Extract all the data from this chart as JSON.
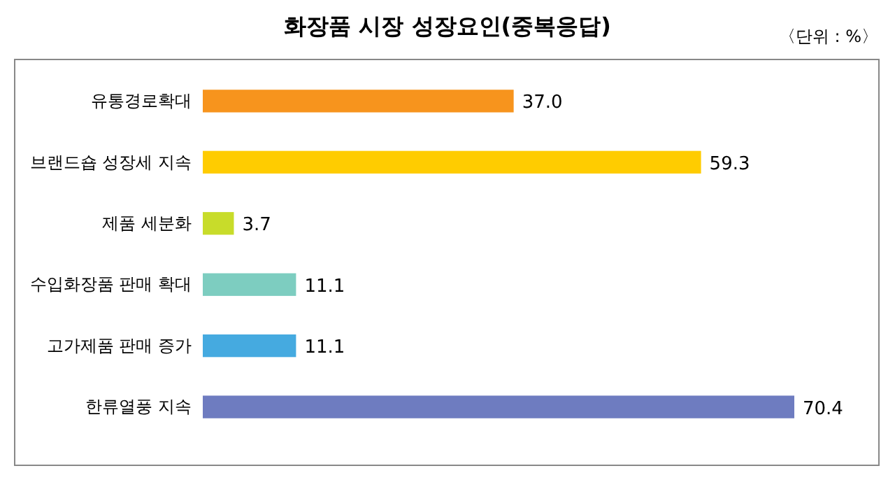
{
  "chart_data": {
    "type": "bar",
    "orientation": "horizontal",
    "title": "화장품 시장 성장요인(중복응답)",
    "annotations": [
      "〈단위 : %〉"
    ],
    "categories": [
      "유통경로확대",
      "브랜드숍 성장세 지속",
      "제품 세분화",
      "수입화장품 판매 확대",
      "고가제품 판매 증가",
      "한류열풍 지속"
    ],
    "values": [
      37.0,
      59.3,
      3.7,
      11.1,
      11.1,
      70.4
    ],
    "value_labels": [
      "37.0",
      "59.3",
      "3.7",
      "11.1",
      "11.1",
      "70.4"
    ],
    "colors": [
      "#f7941d",
      "#ffcc00",
      "#c8dc2a",
      "#7dcdc0",
      "#45aae0",
      "#6e7cc0"
    ]
  }
}
